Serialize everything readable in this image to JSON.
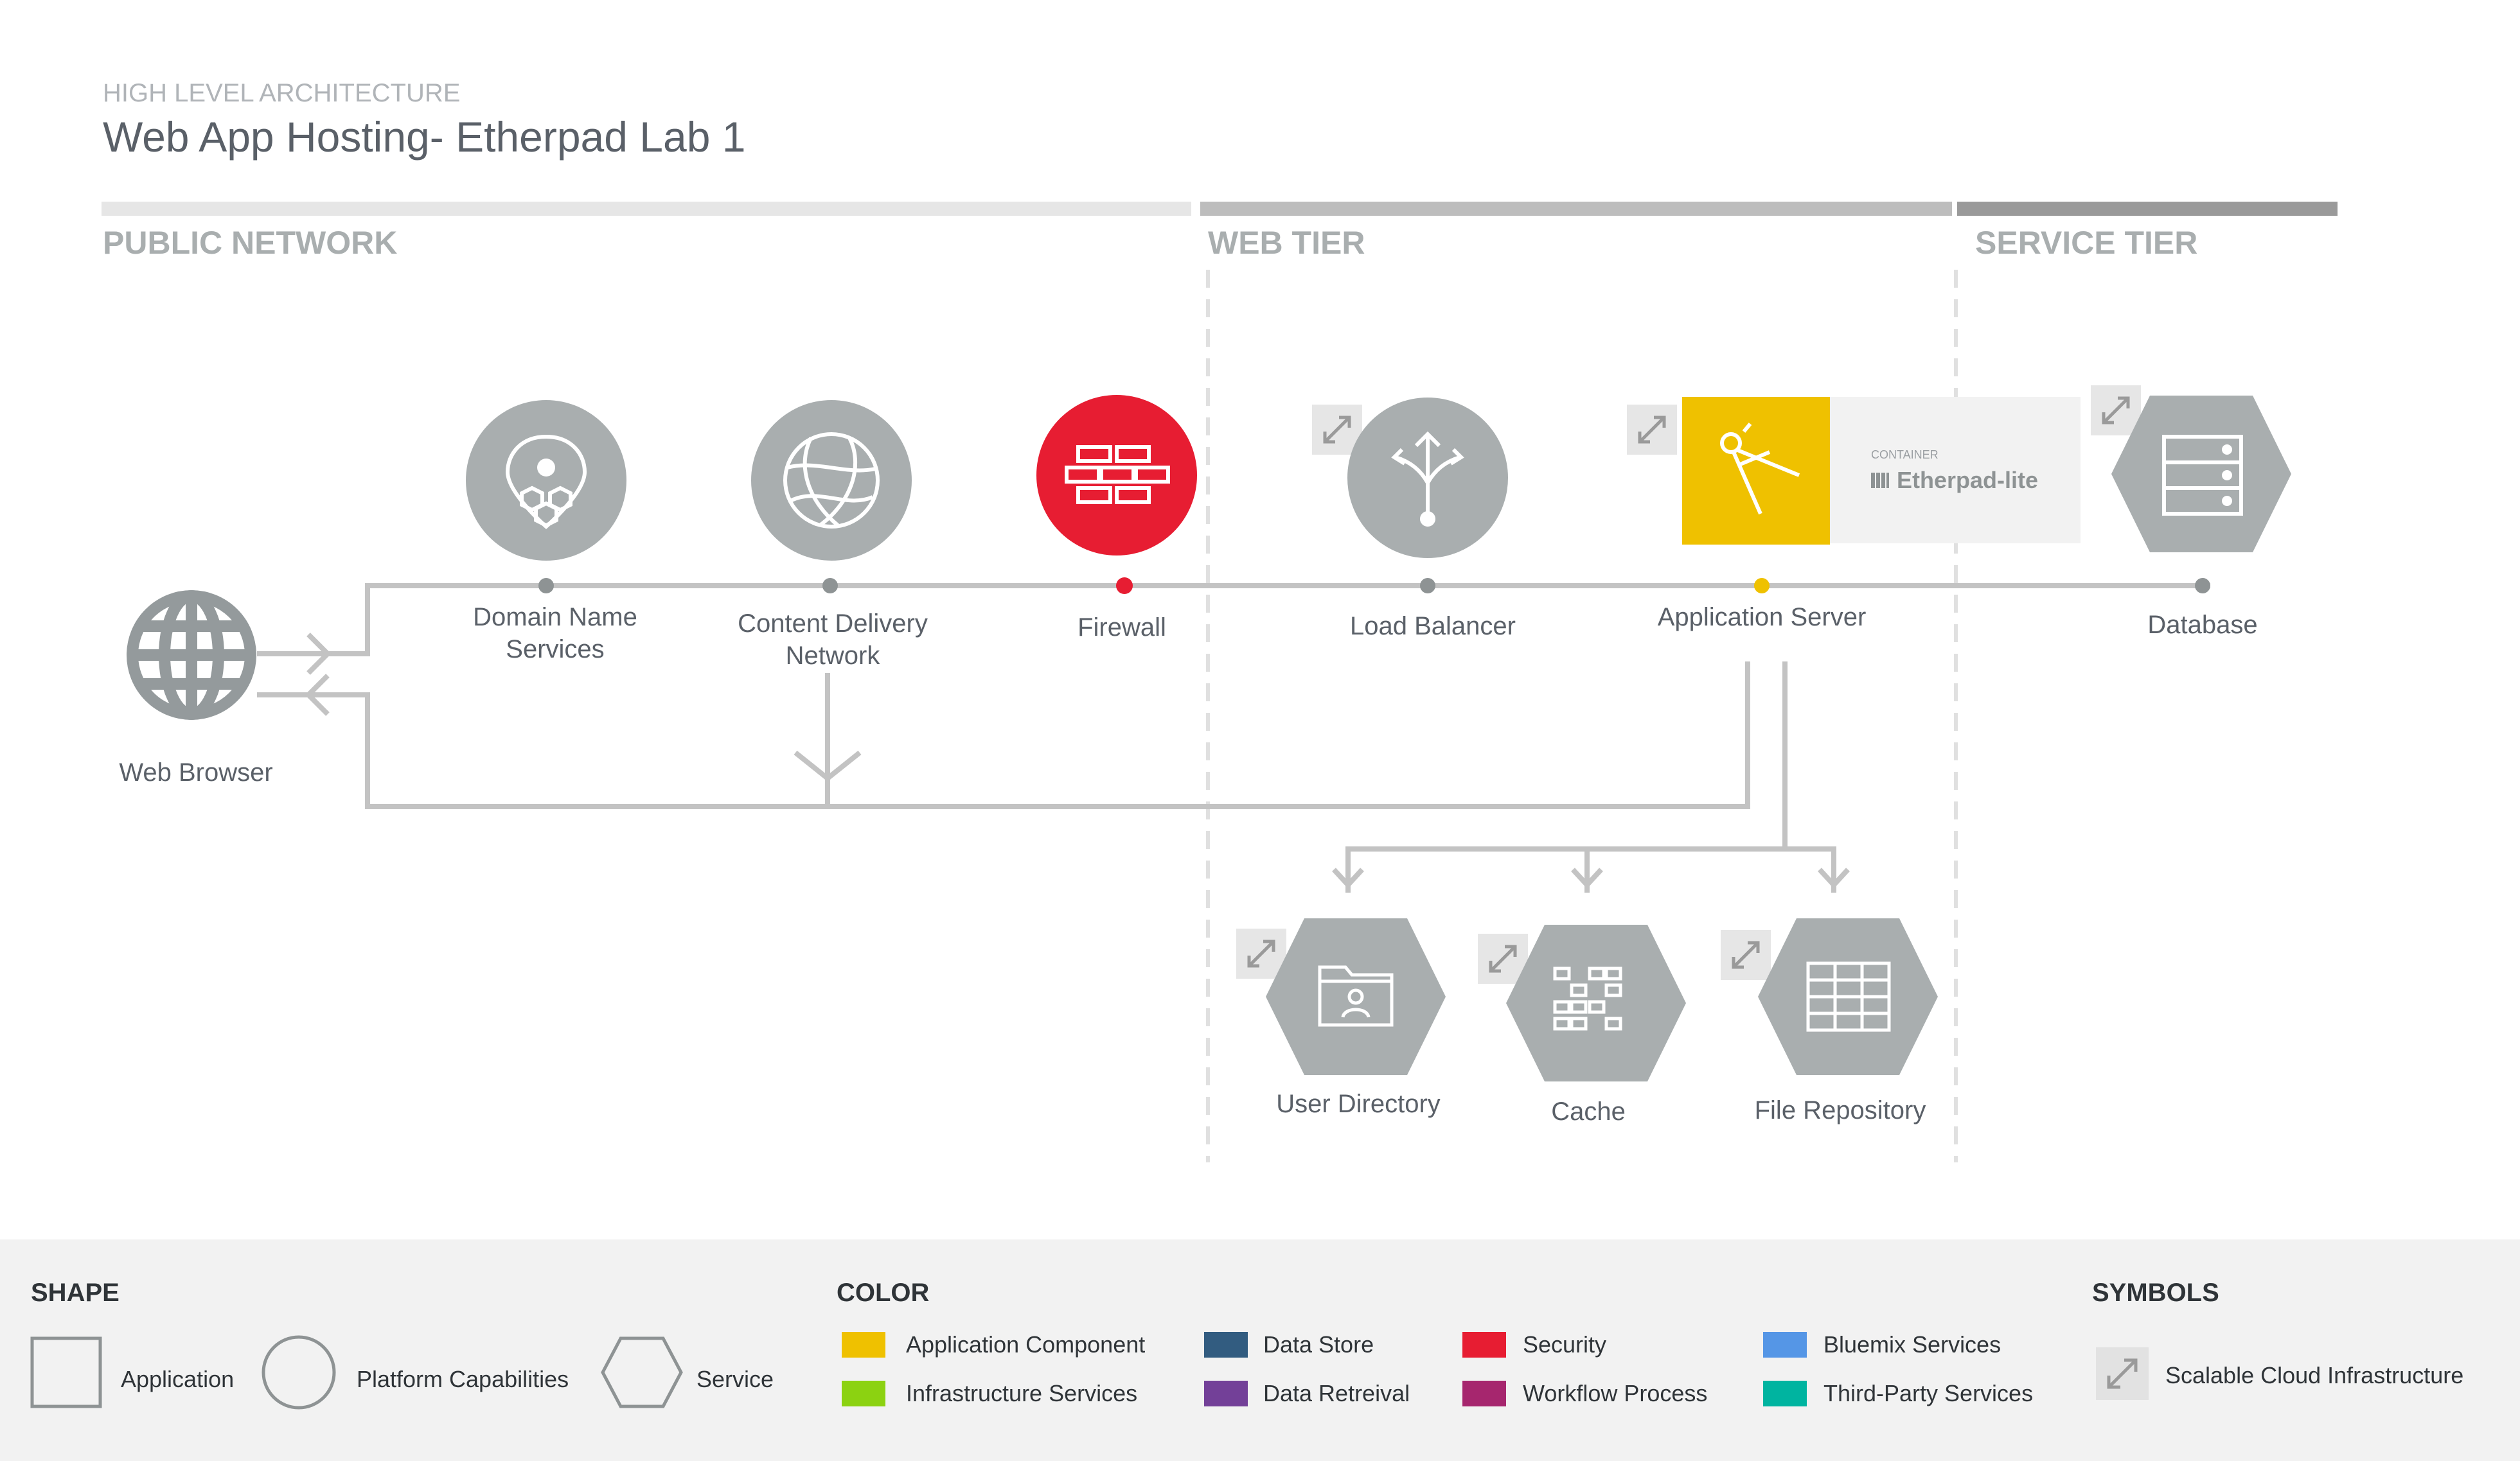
{
  "header": {
    "subtitle": "HIGH LEVEL ARCHITECTURE",
    "title": "Web App Hosting- Etherpad Lab 1"
  },
  "zones": {
    "public": "PUBLIC NETWORK",
    "web": "WEB TIER",
    "service": "SERVICE TIER"
  },
  "nodes": {
    "browser": "Web Browser",
    "dns_1": "Domain Name",
    "dns_2": "Services",
    "cdn_1": "Content Delivery",
    "cdn_2": "Network",
    "firewall": "Firewall",
    "lb": "Load Balancer",
    "app": "Application Server",
    "db": "Database",
    "userdir": "User Directory",
    "cache": "Cache",
    "filerepo": "File Repository"
  },
  "container": {
    "caption": "CONTAINER",
    "name": "Etherpad-lite"
  },
  "legend": {
    "shape_title": "SHAPE",
    "shape_application": "Application",
    "shape_platform": "Platform Capabilities",
    "shape_service": "Service",
    "color_title": "COLOR",
    "colors": [
      {
        "label": "Application Component",
        "color": "#efc100"
      },
      {
        "label": "Infrastructure Services",
        "color": "#8cd211"
      },
      {
        "label": "Data Store",
        "color": "#325c80"
      },
      {
        "label": "Data Retreival",
        "color": "#734098"
      },
      {
        "label": "Security",
        "color": "#e71d32"
      },
      {
        "label": "Workflow Process",
        "color": "#a6266e"
      },
      {
        "label": "Bluemix Services",
        "color": "#5596e6"
      },
      {
        "label": "Third-Party Services",
        "color": "#00b4a0"
      }
    ],
    "symbols_title": "SYMBOLS",
    "symbol_scalable": "Scalable Cloud Infrastructure"
  },
  "colors": {
    "gray_node": "#a9aeaf",
    "line": "#c3c3c3",
    "text": "#5a6068",
    "firewall": "#e71d32",
    "app_component": "#efc100",
    "legend_bg": "#f2f2f2"
  }
}
